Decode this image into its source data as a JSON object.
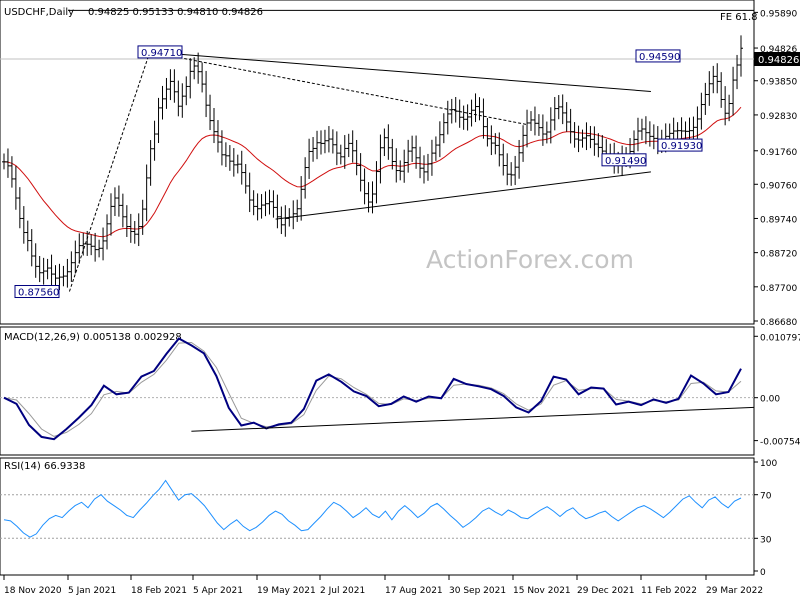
{
  "header": {
    "symbol": "USDCHF,Daily",
    "ohlc": "0.94825 0.95133 0.94810 0.94826"
  },
  "watermark": "ActionForex.com",
  "colors": {
    "candle": "#000000",
    "ma": "#d01010",
    "macd": "#000080",
    "signal": "#9a9a9a",
    "rsi": "#1e90ff",
    "label_border": "#000080",
    "current_price_bg": "#000000"
  },
  "chart_data": [
    {
      "type": "candlestick",
      "panel": "price",
      "y_ticks": [
        "0.95890",
        "0.94826",
        "0.93850",
        "0.92830",
        "0.91760",
        "0.90760",
        "0.89740",
        "0.88720",
        "0.87700",
        "0.86680"
      ],
      "ylim": [
        0.8665,
        0.962
      ],
      "current_price": "0.94826",
      "fe_level": {
        "label": "FE 61.8",
        "value": 0.9595
      },
      "moving_average": {
        "color": "#d01010"
      },
      "key_levels": [
        {
          "label": "0.94710",
          "value": 0.9471
        },
        {
          "label": "0.87560",
          "value": 0.8756
        },
        {
          "label": "0.94590",
          "value": 0.9459
        },
        {
          "label": "0.91490",
          "value": 0.9149
        },
        {
          "label": "0.91930",
          "value": 0.9193
        }
      ],
      "close_series": [
        0.9143,
        0.9131,
        0.9092,
        0.9035,
        0.8974,
        0.8932,
        0.8908,
        0.8862,
        0.8831,
        0.8812,
        0.8817,
        0.8826,
        0.8808,
        0.8796,
        0.8799,
        0.8802,
        0.8815,
        0.8842,
        0.8872,
        0.8893,
        0.8898,
        0.8897,
        0.8891,
        0.8881,
        0.8885,
        0.8907,
        0.8958,
        0.901,
        0.9035,
        0.9013,
        0.8979,
        0.895,
        0.8935,
        0.8927,
        0.895,
        0.9002,
        0.9095,
        0.9182,
        0.9226,
        0.9304,
        0.9331,
        0.936,
        0.9383,
        0.9352,
        0.9309,
        0.9339,
        0.9368,
        0.9413,
        0.9429,
        0.9412,
        0.9375,
        0.9312,
        0.9266,
        0.9233,
        0.9202,
        0.9164,
        0.9161,
        0.9145,
        0.9134,
        0.9136,
        0.9111,
        0.9071,
        0.9029,
        0.901,
        0.9003,
        0.9014,
        0.9018,
        0.9024,
        0.9007,
        0.8979,
        0.8955,
        0.8974,
        0.8978,
        0.8988,
        0.9003,
        0.9061,
        0.9126,
        0.9174,
        0.9183,
        0.92,
        0.9198,
        0.9206,
        0.9211,
        0.9194,
        0.9169,
        0.9158,
        0.9183,
        0.9198,
        0.9176,
        0.9132,
        0.9088,
        0.9048,
        0.9023,
        0.9047,
        0.9114,
        0.9185,
        0.9215,
        0.9185,
        0.9144,
        0.9117,
        0.9115,
        0.9141,
        0.9175,
        0.9185,
        0.9155,
        0.9124,
        0.9113,
        0.9137,
        0.9169,
        0.9193,
        0.9224,
        0.926,
        0.9286,
        0.9299,
        0.9294,
        0.9276,
        0.927,
        0.9277,
        0.9297,
        0.9308,
        0.9292,
        0.9248,
        0.9212,
        0.9199,
        0.9192,
        0.9164,
        0.9132,
        0.9106,
        0.9104,
        0.9127,
        0.917,
        0.9222,
        0.9259,
        0.9268,
        0.9258,
        0.9245,
        0.9226,
        0.9232,
        0.9268,
        0.9302,
        0.9307,
        0.9289,
        0.9262,
        0.9233,
        0.9211,
        0.9208,
        0.9214,
        0.9221,
        0.921,
        0.9196,
        0.9186,
        0.9175,
        0.9163,
        0.9162,
        0.9142,
        0.9136,
        0.9152,
        0.916,
        0.9174,
        0.921,
        0.9235,
        0.9241,
        0.923,
        0.9219,
        0.9213,
        0.9199,
        0.9206,
        0.9219,
        0.9228,
        0.9235,
        0.9236,
        0.9235,
        0.9234,
        0.9236,
        0.9246,
        0.9271,
        0.9314,
        0.9344,
        0.9376,
        0.9398,
        0.9383,
        0.9329,
        0.9288,
        0.9317,
        0.9387,
        0.9432,
        0.9482
      ],
      "trendlines": [
        {
          "style": "solid",
          "from": [
            "2021-03-04",
            0.9471
          ],
          "to": [
            "2022-02-18",
            0.9353
          ]
        },
        {
          "style": "solid",
          "from": [
            "2021-06-01",
            0.8972
          ],
          "to": [
            "2022-02-18",
            0.9113
          ]
        },
        {
          "style": "dashed",
          "from": [
            "2021-01-06",
            0.8756
          ],
          "to": [
            "2021-03-04",
            0.9471
          ]
        },
        {
          "style": "dashed",
          "from": [
            "2021-03-04",
            0.9471
          ],
          "to": [
            "2021-11-25",
            0.9254
          ]
        }
      ]
    },
    {
      "type": "line",
      "panel": "macd",
      "title": "MACD(12,26,9) 0.005138 0.002928",
      "y_ticks": [
        "0.010797",
        "0.00",
        "-0.007548"
      ],
      "ylim": [
        -0.0092,
        0.0112
      ],
      "series": [
        {
          "name": "MACD",
          "color": "#000080",
          "values": [
            0.0,
            -0.0011,
            -0.0048,
            -0.0069,
            -0.0073,
            -0.0055,
            -0.0035,
            -0.0013,
            0.0021,
            0.0006,
            0.0009,
            0.0037,
            0.0047,
            0.0077,
            0.0104,
            0.0092,
            0.0078,
            0.0038,
            -0.0018,
            -0.0049,
            -0.0044,
            -0.0054,
            -0.0047,
            -0.0044,
            -0.002,
            0.003,
            0.0041,
            0.0028,
            0.0011,
            0.0003,
            -0.0015,
            -0.0011,
            0.0002,
            -0.0007,
            0.0002,
            -0.0001,
            0.0033,
            0.0024,
            0.002,
            0.0015,
            0.0003,
            -0.0017,
            -0.0026,
            -0.0006,
            0.0037,
            0.0032,
            0.0006,
            0.0018,
            0.0016,
            -0.0012,
            -0.0007,
            -0.0013,
            -0.0003,
            -0.0009,
            -0.0002,
            0.0039,
            0.0025,
            0.0006,
            0.001,
            0.0051
          ]
        },
        {
          "name": "Signal",
          "color": "#9a9a9a",
          "values": [
            0.0,
            -0.0004,
            -0.0028,
            -0.0055,
            -0.0068,
            -0.0061,
            -0.0047,
            -0.0028,
            0.0005,
            0.0011,
            0.0008,
            0.0027,
            0.0041,
            0.0066,
            0.0096,
            0.0097,
            0.0082,
            0.0053,
            0.0008,
            -0.0036,
            -0.0045,
            -0.0051,
            -0.0049,
            -0.0046,
            -0.003,
            0.0013,
            0.0038,
            0.0033,
            0.0018,
            0.0006,
            -0.001,
            -0.0012,
            -0.0002,
            -0.0005,
            -0.0001,
            -0.0001,
            0.0022,
            0.0024,
            0.0022,
            0.0017,
            0.0007,
            -0.0011,
            -0.0022,
            -0.0011,
            0.0022,
            0.003,
            0.0013,
            0.0016,
            0.0016,
            -0.0003,
            -0.0006,
            -0.0011,
            -0.0005,
            -0.0007,
            -0.0004,
            0.0025,
            0.0027,
            0.0012,
            0.001,
            0.0029
          ]
        }
      ],
      "trendline": {
        "from_index": 15,
        "from_value": -0.0059,
        "to_index": 59,
        "to_value": -0.0017
      }
    },
    {
      "type": "line",
      "panel": "rsi",
      "title": "RSI(14) 66.9338",
      "y_ticks": [
        "100",
        "70",
        "30",
        "0"
      ],
      "ylim": [
        0,
        100
      ],
      "levels": [
        70,
        30
      ],
      "series": [
        {
          "name": "RSI",
          "color": "#1e90ff",
          "values": [
            47,
            46,
            41,
            35,
            31,
            34,
            42,
            48,
            51,
            49,
            55,
            60,
            63,
            58,
            66,
            70,
            64,
            60,
            56,
            51,
            49,
            56,
            62,
            69,
            75,
            83,
            74,
            65,
            70,
            71,
            66,
            60,
            52,
            44,
            38,
            43,
            47,
            41,
            37,
            40,
            45,
            51,
            55,
            52,
            46,
            42,
            37,
            38,
            44,
            50,
            57,
            63,
            60,
            55,
            49,
            53,
            58,
            52,
            49,
            55,
            47,
            55,
            60,
            55,
            49,
            53,
            59,
            62,
            57,
            51,
            46,
            40,
            44,
            49,
            55,
            58,
            54,
            51,
            56,
            53,
            49,
            48,
            52,
            56,
            59,
            55,
            50,
            55,
            58,
            52,
            48,
            50,
            53,
            55,
            50,
            46,
            50,
            54,
            58,
            60,
            57,
            53,
            49,
            54,
            60,
            66,
            69,
            63,
            58,
            65,
            68,
            62,
            58,
            64,
            67
          ]
        }
      ]
    }
  ],
  "x_axis": {
    "labels": [
      "18 Nov 2020",
      "5 Jan 2021",
      "18 Feb 2021",
      "5 Apr 2021",
      "19 May 2021",
      "2 Jul 2021",
      "17 Aug 2021",
      "30 Sep 2021",
      "15 Nov 2021",
      "29 Dec 2021",
      "11 Feb 2022",
      "29 Mar 2022"
    ]
  }
}
